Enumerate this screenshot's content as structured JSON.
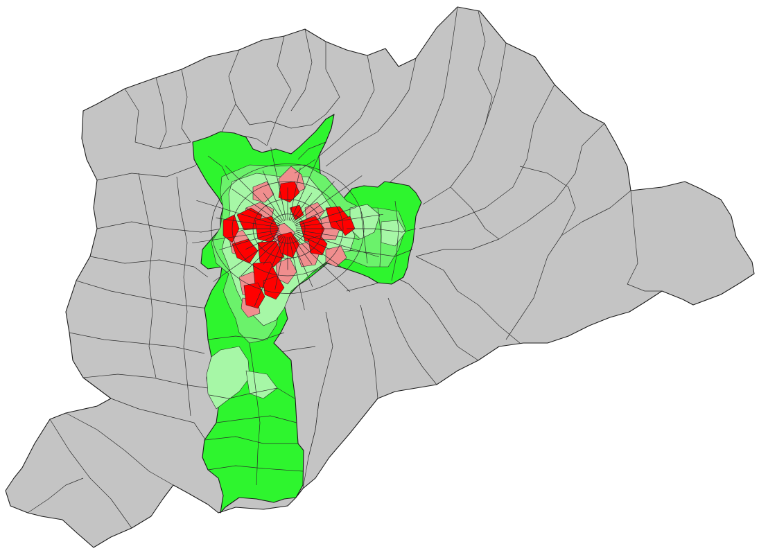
{
  "map": {
    "type": "choropleth",
    "colors": {
      "background": "#ffffff",
      "region_out_of_scope": "#c4c4c4",
      "class_dark_red": "#ff0000",
      "class_light_red": "#f08e8e",
      "class_light_green": "#a6f7a6",
      "class_mid_green": "#6bf26b",
      "class_bright_green": "#2ef52e",
      "borders": "#262626"
    },
    "legend": null
  }
}
